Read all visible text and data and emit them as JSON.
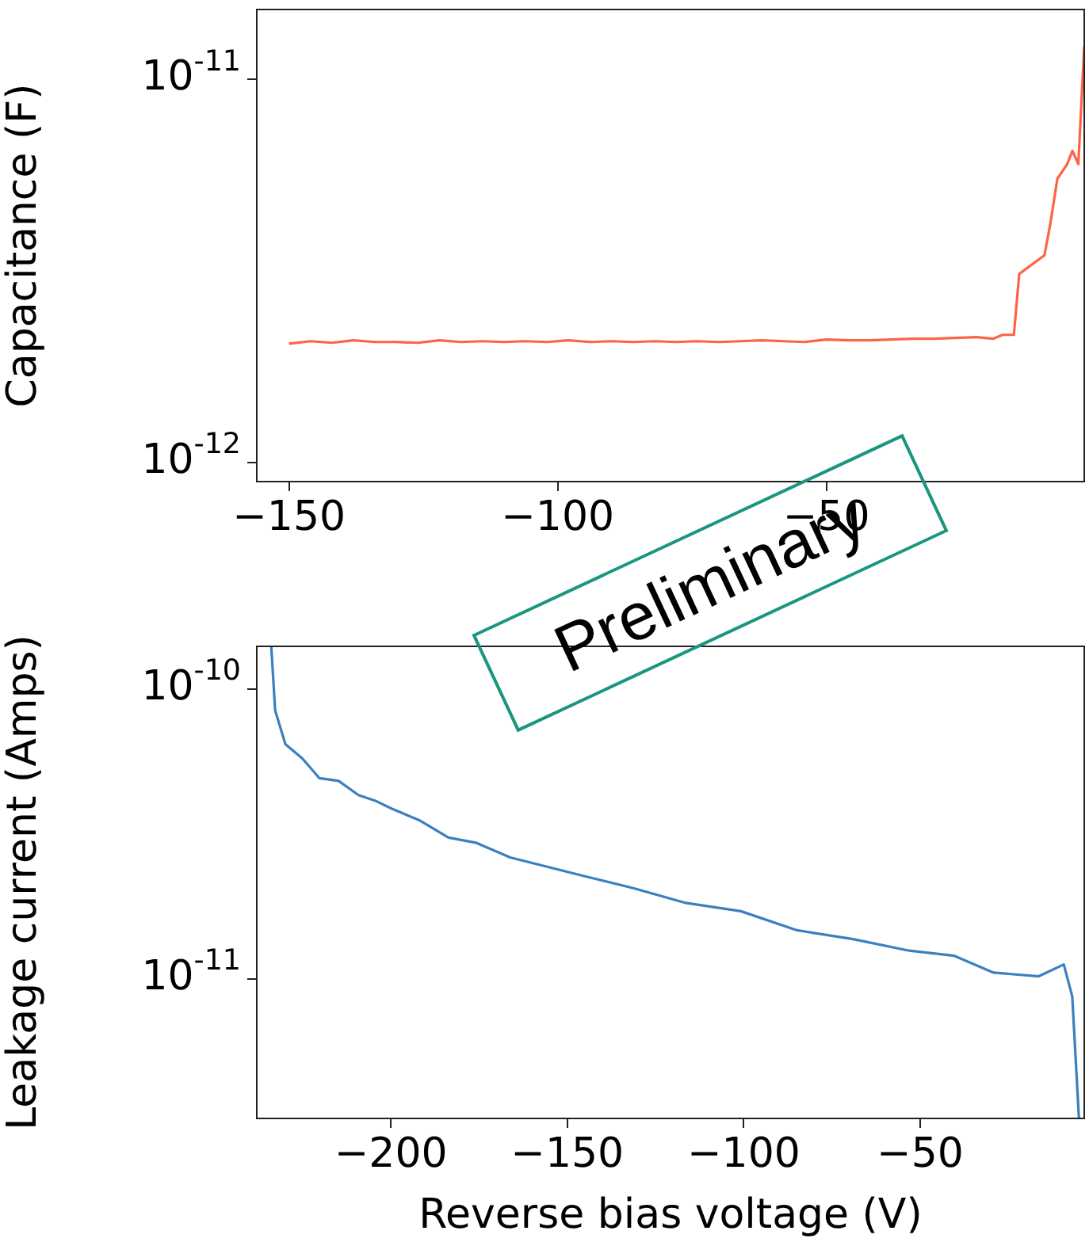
{
  "chart_data": [
    {
      "type": "line",
      "ylabel": "Capacitance (F)",
      "log": "y",
      "grid": false,
      "legend": false,
      "xlim": [
        -156,
        -2
      ],
      "ylim": [
        8.9e-13,
        1.52e-11
      ],
      "xticks": [
        {
          "value": -150,
          "label": "−150"
        },
        {
          "value": -100,
          "label": "−100"
        },
        {
          "value": -50,
          "label": "−50"
        }
      ],
      "yticks": [
        {
          "value": 1e-12,
          "label": "10$^{-12}$"
        },
        {
          "value": 1e-11,
          "label": "10$^{-11}$"
        }
      ],
      "series": [
        {
          "color": "#ff6347",
          "x": [
            -150,
            -146,
            -142,
            -138,
            -134,
            -130,
            -126,
            -122,
            -118,
            -114,
            -110,
            -106,
            -102,
            -98,
            -94,
            -90,
            -86,
            -82,
            -78,
            -74,
            -70,
            -66,
            -62,
            -58,
            -54,
            -50,
            -46,
            -42,
            -38,
            -34,
            -30,
            -26,
            -22,
            -19,
            -17.2,
            -15.1,
            -14.1,
            -9.4,
            -8.3,
            -7,
            -5.2,
            -4.2,
            -3.1,
            -2
          ],
          "values": [
            2.04e-12,
            2.07e-12,
            2.05e-12,
            2.08e-12,
            2.06e-12,
            2.06e-12,
            2.05e-12,
            2.08e-12,
            2.06e-12,
            2.07e-12,
            2.06e-12,
            2.07e-12,
            2.06e-12,
            2.08e-12,
            2.06e-12,
            2.07e-12,
            2.06e-12,
            2.07e-12,
            2.06e-12,
            2.07e-12,
            2.06e-12,
            2.07e-12,
            2.08e-12,
            2.07e-12,
            2.06e-12,
            2.09e-12,
            2.08e-12,
            2.08e-12,
            2.09e-12,
            2.1e-12,
            2.1e-12,
            2.11e-12,
            2.12e-12,
            2.1e-12,
            2.15e-12,
            2.15e-12,
            3.1e-12,
            3.47e-12,
            4.2e-12,
            5.5e-12,
            5.99e-12,
            6.5e-12,
            6e-12,
            1.22e-11
          ]
        }
      ]
    },
    {
      "type": "line",
      "xlabel": "Reverse bias voltage (V)",
      "ylabel": "Leakage current (Amps)",
      "log": "y",
      "grid": false,
      "legend": false,
      "xlim": [
        -238,
        -3.5
      ],
      "ylim": [
        3.3e-12,
        1.4e-10
      ],
      "xticks": [
        {
          "value": -200,
          "label": "−200"
        },
        {
          "value": -150,
          "label": "−150"
        },
        {
          "value": -100,
          "label": "−100"
        },
        {
          "value": -50,
          "label": "−50"
        }
      ],
      "yticks": [
        {
          "value": 1e-11,
          "label": "10$^{-11}$"
        },
        {
          "value": 1e-10,
          "label": "10$^{-10}$"
        }
      ],
      "annotations": [
        "Preliminary"
      ],
      "series": [
        {
          "color": "#3a80c0",
          "x": [
            -233.9,
            -232.8,
            -229.9,
            -225.1,
            -220.3,
            -214.8,
            -209.2,
            -204.4,
            -199.6,
            -191.7,
            -183.7,
            -175.7,
            -166.2,
            -156.6,
            -143.9,
            -131.1,
            -116.8,
            -100.8,
            -84.9,
            -69,
            -53.1,
            -40.3,
            -29.2,
            -16.4,
            -9.3,
            -6.9,
            -5
          ],
          "values": [
            1.4e-10,
            8.43e-11,
            6.44e-11,
            5.75e-11,
            4.92e-11,
            4.81e-11,
            4.3e-11,
            4.11e-11,
            3.85e-11,
            3.51e-11,
            3.07e-11,
            2.94e-11,
            2.62e-11,
            2.45e-11,
            2.24e-11,
            2.05e-11,
            1.83e-11,
            1.71e-11,
            1.47e-11,
            1.37e-11,
            1.25e-11,
            1.2e-11,
            1.05e-11,
            1.02e-11,
            1.12e-11,
            8.7e-12,
            3.3e-12
          ]
        }
      ]
    }
  ]
}
